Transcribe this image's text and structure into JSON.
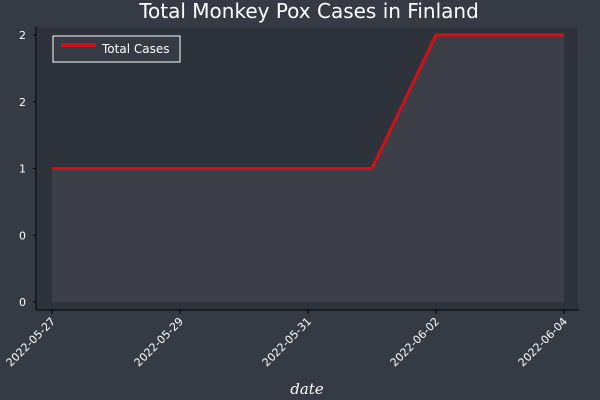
{
  "chart_data": {
    "type": "area",
    "title": "Total Monkey Pox Cases in Finland",
    "xlabel": "date",
    "ylabel": "",
    "x": [
      "2022-05-27",
      "2022-05-28",
      "2022-05-29",
      "2022-05-30",
      "2022-05-31",
      "2022-06-01",
      "2022-06-02",
      "2022-06-03",
      "2022-06-04"
    ],
    "series": [
      {
        "name": "Total Cases",
        "values": [
          1,
          1,
          1,
          1,
          1,
          1,
          2,
          2,
          2
        ]
      }
    ],
    "xticks": [
      "2022-05-27",
      "2022-05-29",
      "2022-05-31",
      "2022-06-02",
      "2022-06-04"
    ],
    "yticks": [
      0,
      0.5,
      1,
      1.5,
      2
    ],
    "ytick_labels": [
      "0",
      "0",
      "1",
      "2",
      "2"
    ],
    "ylim": [
      0,
      2
    ],
    "grid": false,
    "legend_position": "top-left",
    "colors": {
      "background": "#353a44",
      "plot_area": "#2e323a",
      "fill": "#3c3f47",
      "line": "#d41016",
      "axis": "#000000"
    }
  }
}
